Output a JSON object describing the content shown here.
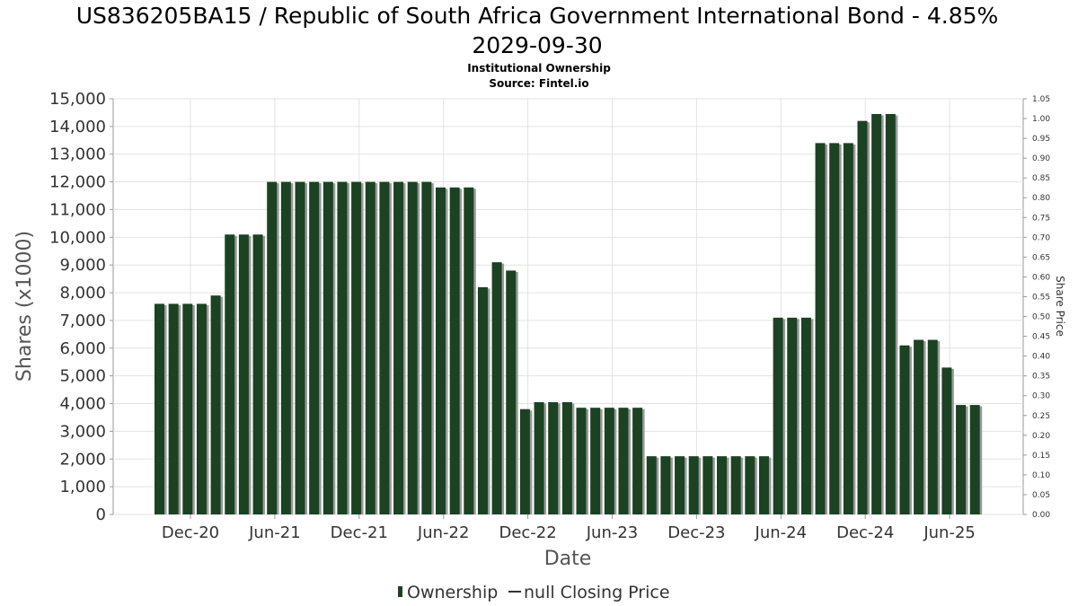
{
  "chart_data": {
    "type": "bar",
    "title_line1": "US836205BA15 / Republic of South Africa Government International Bond - 4.85%",
    "title_line2": "2029-09-30",
    "subtitle1": "Institutional Ownership",
    "subtitle2": "Source: Fintel.io",
    "xlabel": "Date",
    "ylabel": "Shares (x1000)",
    "y2label": "Share Price",
    "ylim": [
      0,
      15000
    ],
    "y2lim": [
      0,
      1.05
    ],
    "yticks": [
      "0",
      "1,000",
      "2,000",
      "3,000",
      "4,000",
      "5,000",
      "6,000",
      "7,000",
      "8,000",
      "9,000",
      "10,000",
      "11,000",
      "12,000",
      "13,000",
      "14,000",
      "15,000"
    ],
    "y2ticks": [
      "0.00",
      "0.05",
      "0.10",
      "0.15",
      "0.20",
      "0.25",
      "0.30",
      "0.35",
      "0.40",
      "0.45",
      "0.50",
      "0.55",
      "0.60",
      "0.65",
      "0.70",
      "0.75",
      "0.80",
      "0.85",
      "0.90",
      "0.95",
      "1.00",
      "1.05"
    ],
    "xticks": [
      "Dec-20",
      "Jun-21",
      "Dec-21",
      "Jun-22",
      "Dec-22",
      "Jun-23",
      "Dec-23",
      "Jun-24",
      "Dec-24",
      "Jun-25"
    ],
    "grid": true,
    "legend_position": "bottom",
    "series": [
      {
        "name": "Ownership",
        "color": "#1b4222",
        "values": [
          7600,
          7600,
          7600,
          7600,
          7900,
          10100,
          10100,
          10100,
          12000,
          12000,
          12000,
          12000,
          12000,
          12000,
          12000,
          12000,
          12000,
          12000,
          12000,
          12000,
          11800,
          11800,
          11800,
          8200,
          9100,
          8800,
          3800,
          4050,
          4050,
          4050,
          3850,
          3850,
          3850,
          3850,
          3850,
          2100,
          2100,
          2100,
          2100,
          2100,
          2100,
          2100,
          2100,
          2100,
          7100,
          7100,
          7100,
          13400,
          13400,
          13400,
          14200,
          14450,
          14450,
          6100,
          6300,
          6300,
          5300,
          3950,
          3950
        ]
      }
    ],
    "legend_entries": [
      "Ownership",
      "null Closing Price"
    ]
  }
}
